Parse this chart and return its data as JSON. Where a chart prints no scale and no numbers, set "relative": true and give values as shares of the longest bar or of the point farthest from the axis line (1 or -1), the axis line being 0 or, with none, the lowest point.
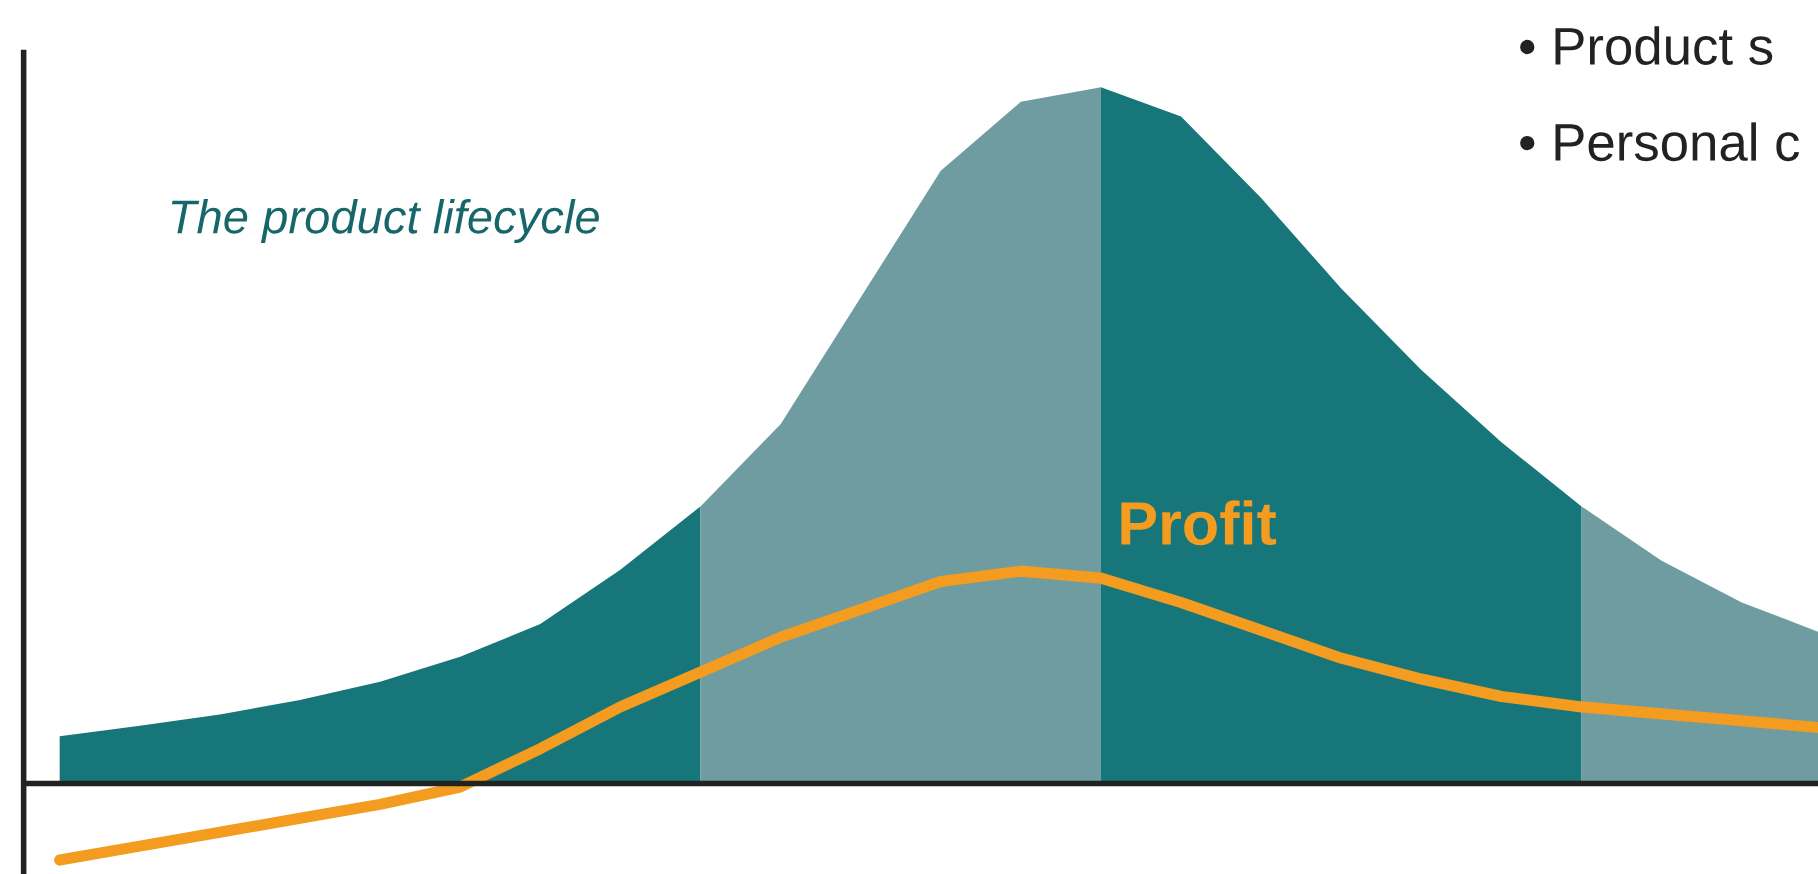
{
  "chart_data": {
    "type": "area",
    "relative": true,
    "title": "The product lifecycle",
    "categories": [
      null,
      null,
      null,
      null,
      null,
      null,
      null,
      null,
      null,
      null,
      null,
      null,
      null,
      null,
      null,
      null,
      null,
      null,
      null,
      null,
      null,
      null,
      null
    ],
    "series": [
      {
        "color": "#17767a",
        "values": [
          0.068,
          0.083,
          0.099,
          0.12,
          0.146,
          0.182,
          0.229,
          0.307,
          0.398,
          null,
          null,
          null,
          null,
          null,
          null,
          null,
          null,
          null,
          null,
          null,
          null,
          null,
          null
        ]
      },
      {
        "color": "#6e9ca0",
        "values": [
          null,
          null,
          null,
          null,
          null,
          null,
          null,
          null,
          0.398,
          0.516,
          0.698,
          0.88,
          0.979,
          1,
          null,
          null,
          null,
          null,
          null,
          null,
          null,
          null,
          null
        ]
      },
      {
        "color": "#17767a",
        "values": [
          null,
          null,
          null,
          null,
          null,
          null,
          null,
          null,
          null,
          null,
          null,
          null,
          null,
          1,
          0.958,
          0.841,
          0.711,
          0.594,
          0.49,
          0.398,
          null,
          null,
          null
        ]
      },
      {
        "color": "#6e9ca0",
        "values": [
          null,
          null,
          null,
          null,
          null,
          null,
          null,
          null,
          null,
          null,
          null,
          null,
          null,
          null,
          null,
          null,
          null,
          null,
          null,
          0.398,
          0.32,
          0.26,
          0.216
        ]
      },
      {
        "type": "line",
        "name": "Profit",
        "color": "#f39c1f",
        "values": [
          -0.11,
          -0.09,
          -0.07,
          -0.05,
          -0.03,
          -0.005,
          0.05,
          0.11,
          0.16,
          0.21,
          0.25,
          0.29,
          0.305,
          0.295,
          0.26,
          0.22,
          0.18,
          0.15,
          0.125,
          0.11,
          0.1,
          0.09,
          0.08
        ]
      }
    ],
    "annotations": [
      "• Product s",
      "• Personal c"
    ],
    "legend": false
  }
}
